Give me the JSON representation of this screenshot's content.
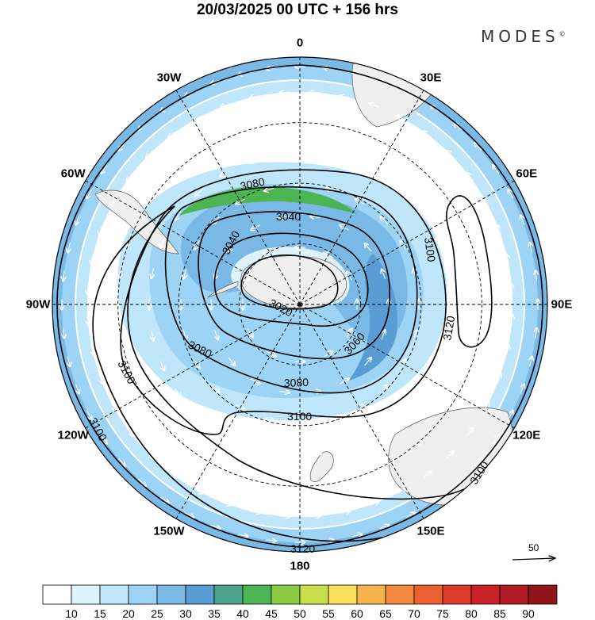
{
  "header": {
    "title": "20/03/2025  00 UTC  + 156 hrs",
    "brand": "MODES",
    "brand_mark": "©"
  },
  "map": {
    "projection": "south-polar-stereographic",
    "longitude_labels": [
      {
        "text": "0",
        "lon": 0
      },
      {
        "text": "30E",
        "lon": 30
      },
      {
        "text": "60E",
        "lon": 60
      },
      {
        "text": "90E",
        "lon": 90
      },
      {
        "text": "120E",
        "lon": 120
      },
      {
        "text": "150E",
        "lon": 150
      },
      {
        "text": "180",
        "lon": 180
      },
      {
        "text": "150W",
        "lon": -150
      },
      {
        "text": "120W",
        "lon": -120
      },
      {
        "text": "90W",
        "lon": -90
      },
      {
        "text": "60W",
        "lon": -60
      },
      {
        "text": "30W",
        "lon": -30
      }
    ],
    "contour_labels": [
      "3020",
      "3040",
      "3040",
      "3060",
      "3080",
      "3080",
      "3080",
      "3100",
      "3100",
      "3100",
      "3100",
      "3100",
      "3120"
    ],
    "reference_vector": {
      "label": "50"
    }
  },
  "colorbar": {
    "labels": [
      "10",
      "15",
      "20",
      "25",
      "30",
      "35",
      "40",
      "45",
      "50",
      "55",
      "60",
      "65",
      "70",
      "75",
      "80",
      "85",
      "90"
    ],
    "colors": [
      "#ffffff",
      "#dff3fd",
      "#bfe6fb",
      "#9dd3f4",
      "#7ab8e6",
      "#5a9dd4",
      "#4aa38a",
      "#4db453",
      "#8ccc45",
      "#c9de4c",
      "#fbe05e",
      "#f7b34c",
      "#f2893e",
      "#ea6030",
      "#dc3a2a",
      "#c82226",
      "#b01a22",
      "#8f1519"
    ]
  },
  "colors": {
    "land": "#efefef",
    "coast": "#555555",
    "grid": "#000000",
    "arrow": "#ffffff"
  }
}
